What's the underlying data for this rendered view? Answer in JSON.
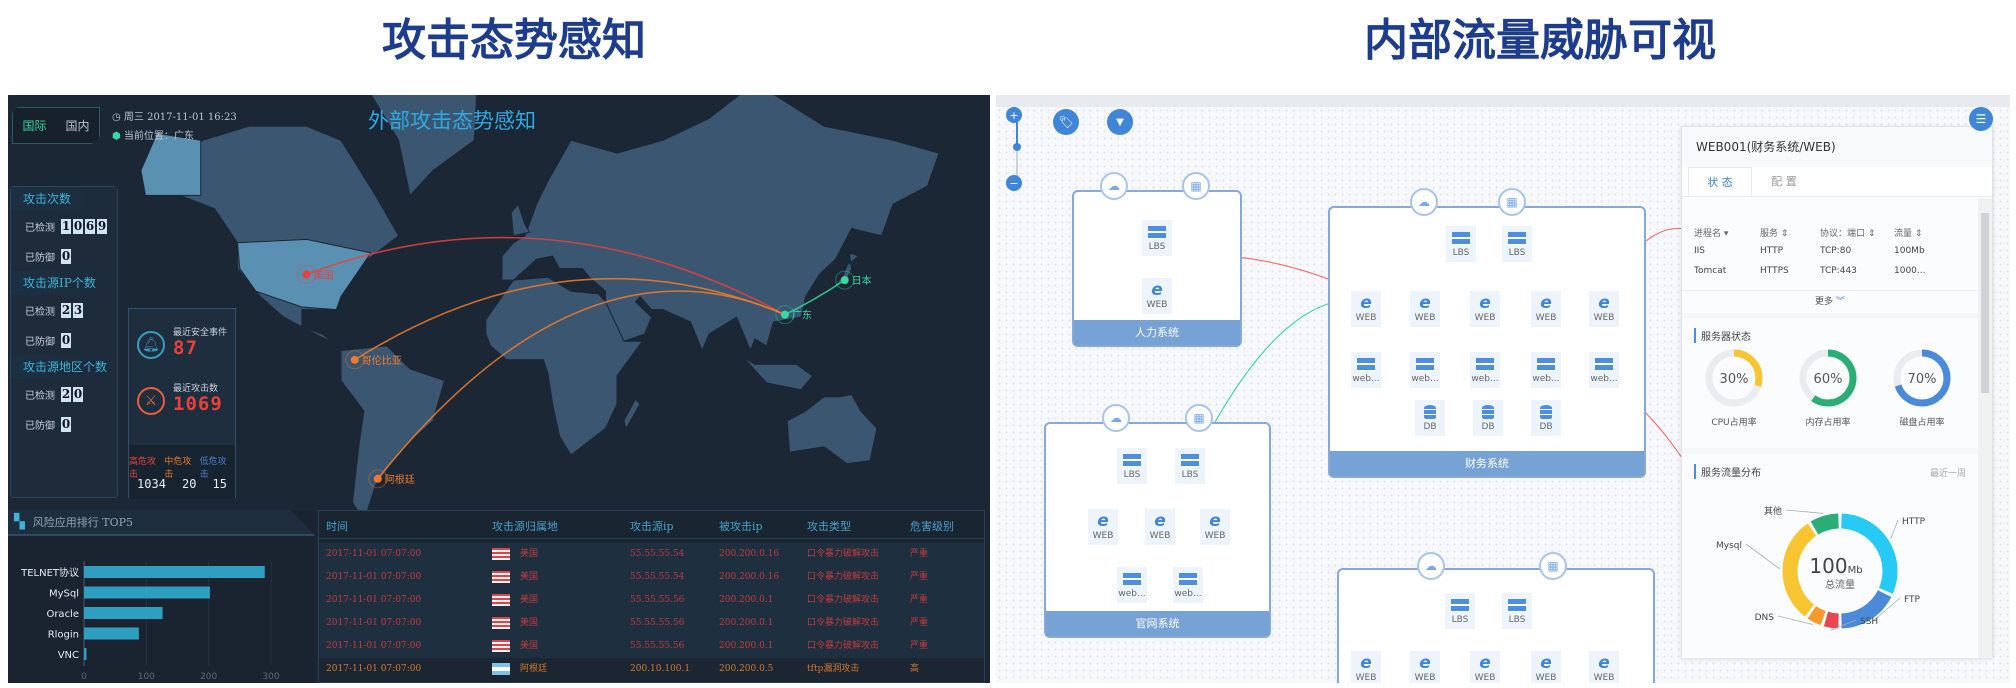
{
  "headings": {
    "left": "攻击态势感知",
    "right": "内部流量威胁可视"
  },
  "attack_screen": {
    "tabs": [
      {
        "label": "国际",
        "active": true
      },
      {
        "label": "国内",
        "active": false
      }
    ],
    "datetime": "周三 2017-11-01 16:23",
    "location": "当前位置：广东",
    "title": "外部攻击态势感知",
    "stats": [
      {
        "title": "攻击次数",
        "detected_label": "已检测",
        "detected": "1069",
        "defended_label": "已防御",
        "defended": "0"
      },
      {
        "title": "攻击源IP个数",
        "detected_label": "已检测",
        "detected": "23",
        "defended_label": "已防御",
        "defended": "0"
      },
      {
        "title": "攻击源地区个数",
        "detected_label": "已检测",
        "detected": "20",
        "defended_label": "已防御",
        "defended": "0"
      }
    ],
    "events": {
      "recent_security_label": "最近安全事件",
      "recent_security": "87",
      "recent_attack_label": "最近攻击数",
      "recent_attack": "1069",
      "levels": [
        {
          "label": "高危攻击",
          "value": "1034",
          "color": "#e0443c"
        },
        {
          "label": "中危攻击",
          "value": "20",
          "color": "#e8782a"
        },
        {
          "label": "低危攻击",
          "value": "15",
          "color": "#4a7fd0"
        }
      ]
    },
    "map_markers": [
      {
        "label": "美国",
        "color": "#e8413c"
      },
      {
        "label": "哥伦比亚",
        "color": "#f07a2c"
      },
      {
        "label": "阿根廷",
        "color": "#f07a2c"
      },
      {
        "label": "广东",
        "color": "#3ad8a0"
      },
      {
        "label": "日本",
        "color": "#3ad8a0"
      }
    ],
    "risk": {
      "title": "风险应用排行 TOP5",
      "chart_data": {
        "type": "bar",
        "orientation": "horizontal",
        "categories": [
          "TELNET协议",
          "MySql",
          "Oracle",
          "Rlogin",
          "VNC"
        ],
        "values": [
          290,
          202,
          126,
          88,
          4
        ],
        "xlim": [
          0,
          300
        ],
        "ticks": [
          "0",
          "100",
          "200",
          "300"
        ],
        "color": "#2e9fc0"
      }
    },
    "table": {
      "headers": [
        "时间",
        "攻击源归属地",
        "攻击源ip",
        "被攻击ip",
        "攻击类型",
        "危害级别"
      ],
      "rows": [
        {
          "time": "2017-11-01 07:07:00",
          "origin": "美国",
          "flag": "us",
          "src": "55.55.55.54",
          "dst": "200.200.0.16",
          "type": "口令暴力破解攻击",
          "level": "严重"
        },
        {
          "time": "2017-11-01 07:07:00",
          "origin": "美国",
          "flag": "us",
          "src": "55.55.55.54",
          "dst": "200.200.0.16",
          "type": "口令暴力破解攻击",
          "level": "严重"
        },
        {
          "time": "2017-11-01 07:07:00",
          "origin": "美国",
          "flag": "us",
          "src": "55.55.55.56",
          "dst": "200.200.0.1",
          "type": "口令暴力破解攻击",
          "level": "严重"
        },
        {
          "time": "2017-11-01 07:07:00",
          "origin": "美国",
          "flag": "us",
          "src": "55.55.55.56",
          "dst": "200.200.0.1",
          "type": "口令暴力破解攻击",
          "level": "严重"
        },
        {
          "time": "2017-11-01 07:07:00",
          "origin": "美国",
          "flag": "us",
          "src": "55.55.55.56",
          "dst": "200.200.0.1",
          "type": "口令暴力破解攻击",
          "level": "严重"
        },
        {
          "time": "2017-11-01 07:07:00",
          "origin": "阿根廷",
          "flag": "ar",
          "src": "200.10.100.1",
          "dst": "200.200.0.5",
          "type": "tftp漏洞攻击",
          "level": "高"
        }
      ]
    }
  },
  "traffic_screen": {
    "groups": [
      {
        "name": "人力系统",
        "rows": [
          [
            "LBS"
          ],
          [
            "WEB"
          ]
        ]
      },
      {
        "name": "财务系统",
        "rows": [
          [
            "LBS",
            "LBS"
          ],
          [
            "WEB",
            "WEB",
            "WEB",
            "WEB",
            "WEB"
          ],
          [
            "web...",
            "web...",
            "web...",
            "web...",
            "web..."
          ],
          [
            "DB",
            "DB",
            "DB"
          ]
        ]
      },
      {
        "name": "官网系统",
        "rows": [
          [
            "LBS",
            "LBS"
          ],
          [
            "WEB",
            "WEB",
            "WEB"
          ],
          [
            "web...",
            "web..."
          ]
        ]
      },
      {
        "name": "",
        "rows": [
          [
            "LBS",
            "LBS"
          ],
          [
            "WEB",
            "WEB",
            "WEB",
            "WEB",
            "WEB"
          ]
        ]
      }
    ],
    "panel": {
      "title": "WEB001(财务系统/WEB)",
      "tabs": [
        {
          "label": "状 态",
          "active": true
        },
        {
          "label": "配 置",
          "active": false
        }
      ],
      "process_headers": [
        "进程名 ▾",
        "服务 ⇕",
        "协议：端口 ⇕",
        "流量 ⇕"
      ],
      "processes": [
        [
          "IIS",
          "HTTP",
          "TCP:80",
          "100Mb"
        ],
        [
          "Tomcat",
          "HTTPS",
          "TCP:443",
          "1000..."
        ]
      ],
      "more": "更多",
      "server_status_title": "服务器状态",
      "gauges": [
        {
          "label": "CPU占用率",
          "value": 30,
          "text": "30%",
          "color": "#f7c531"
        },
        {
          "label": "内存占用率",
          "value": 60,
          "text": "60%",
          "color": "#2aae76"
        },
        {
          "label": "磁盘占用率",
          "value": 70,
          "text": "70%",
          "color": "#4a8ad8"
        }
      ],
      "traffic_title": "服务流量分布",
      "traffic_range": "最近一周",
      "total_value": "100",
      "total_unit": "Mb",
      "total_label": "总流量",
      "chart_data": {
        "type": "pie",
        "donut": true,
        "categories": [
          "HTTP",
          "FTP",
          "SSH",
          "DNS",
          "Mysql",
          "其他"
        ],
        "values": [
          32,
          18,
          5,
          5,
          31,
          9
        ],
        "colors": [
          "#27c9f5",
          "#4a8ad8",
          "#e8474f",
          "#f99a2a",
          "#f7c531",
          "#2aae76"
        ]
      }
    }
  }
}
